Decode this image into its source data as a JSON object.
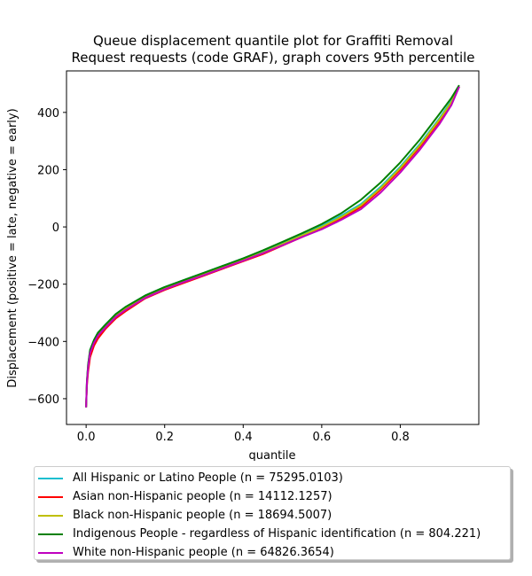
{
  "chart_data": {
    "type": "line",
    "title": "Queue displacement quantile plot for Graffiti Removal\nRequest  requests (code GRAF), graph covers 95th percentile",
    "xlabel": "quantile",
    "ylabel": "Displacement (positive = late, negative = early)",
    "xlim": [
      -0.05,
      1.0
    ],
    "ylim": [
      -690,
      545
    ],
    "xticks": [
      0.0,
      0.2,
      0.4,
      0.6,
      0.8
    ],
    "xtick_labels": [
      "0.0",
      "0.2",
      "0.4",
      "0.6",
      "0.8"
    ],
    "yticks": [
      -600,
      -400,
      -200,
      0,
      200,
      400
    ],
    "ytick_labels": [
      "−600",
      "−400",
      "−200",
      "0",
      "200",
      "400"
    ],
    "grid": false,
    "legend_position": "below plot",
    "x": [
      0.0,
      0.002,
      0.005,
      0.01,
      0.02,
      0.03,
      0.05,
      0.075,
      0.1,
      0.15,
      0.2,
      0.25,
      0.3,
      0.35,
      0.4,
      0.45,
      0.5,
      0.55,
      0.6,
      0.65,
      0.7,
      0.75,
      0.8,
      0.85,
      0.9,
      0.93,
      0.95
    ],
    "series": [
      {
        "name": "All Hispanic or Latino People (n = 75295.0103)",
        "color": "#17becf",
        "values": [
          -630,
          -540,
          -480,
          -430,
          -395,
          -370,
          -340,
          -305,
          -280,
          -240,
          -210,
          -185,
          -160,
          -135,
          -110,
          -85,
          -55,
          -25,
          5,
          40,
          80,
          140,
          210,
          290,
          380,
          440,
          490
        ]
      },
      {
        "name": "Asian non-Hispanic people (n = 14112.1257)",
        "color": "#ff0000",
        "values": [
          -630,
          -555,
          -505,
          -455,
          -415,
          -390,
          -355,
          -320,
          -295,
          -250,
          -220,
          -195,
          -170,
          -145,
          -120,
          -95,
          -65,
          -35,
          -5,
          30,
          70,
          130,
          200,
          280,
          370,
          430,
          490
        ]
      },
      {
        "name": "Black non-Hispanic people (n = 18694.5007)",
        "color": "#bfbf00",
        "values": [
          -630,
          -545,
          -485,
          -435,
          -400,
          -375,
          -345,
          -310,
          -285,
          -245,
          -215,
          -190,
          -165,
          -140,
          -115,
          -90,
          -60,
          -30,
          0,
          35,
          75,
          135,
          205,
          285,
          375,
          435,
          490
        ]
      },
      {
        "name": "Indigenous People - regardless of Hispanic identification (n = 804.221)",
        "color": "#008000",
        "values": [
          -630,
          -540,
          -480,
          -430,
          -395,
          -370,
          -340,
          -305,
          -280,
          -240,
          -210,
          -185,
          -160,
          -135,
          -110,
          -82,
          -52,
          -22,
          10,
          48,
          95,
          155,
          225,
          305,
          395,
          450,
          495
        ]
      },
      {
        "name": "White non-Hispanic people (n = 64826.3654)",
        "color": "#bf00bf",
        "values": [
          -630,
          -545,
          -490,
          -440,
          -405,
          -380,
          -350,
          -315,
          -290,
          -248,
          -218,
          -192,
          -168,
          -143,
          -118,
          -92,
          -64,
          -35,
          -8,
          25,
          62,
          120,
          190,
          270,
          360,
          425,
          490
        ]
      }
    ]
  }
}
